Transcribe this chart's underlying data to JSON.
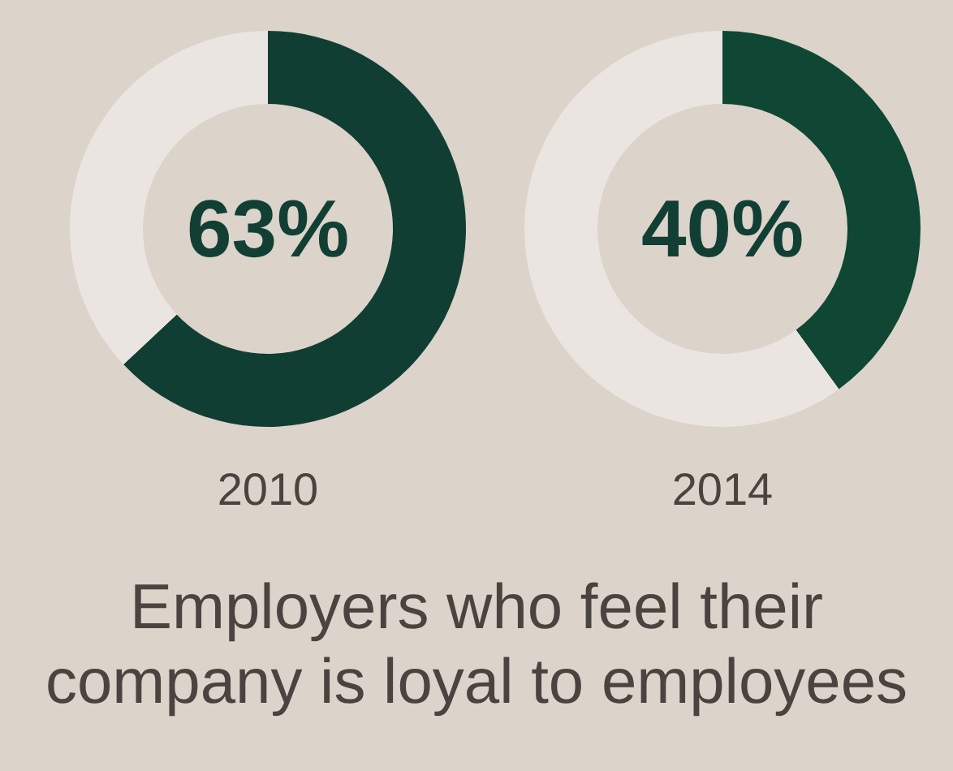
{
  "chart_data": [
    {
      "type": "donut",
      "xlabel": "2010",
      "categories": [
        null,
        null
      ],
      "values": [
        63,
        37
      ],
      "colors": [
        "#113e32",
        "#ebe5e1"
      ],
      "annotations": [
        "63%"
      ]
    },
    {
      "type": "donut",
      "xlabel": "2014",
      "categories": [
        null,
        null
      ],
      "values": [
        40,
        60
      ],
      "colors": [
        "#0f4634",
        "#ebe5e1"
      ],
      "annotations": [
        "40%"
      ]
    },
    {
      "type": "other",
      "title": "Employers who feel their company is loyal to employees"
    }
  ]
}
